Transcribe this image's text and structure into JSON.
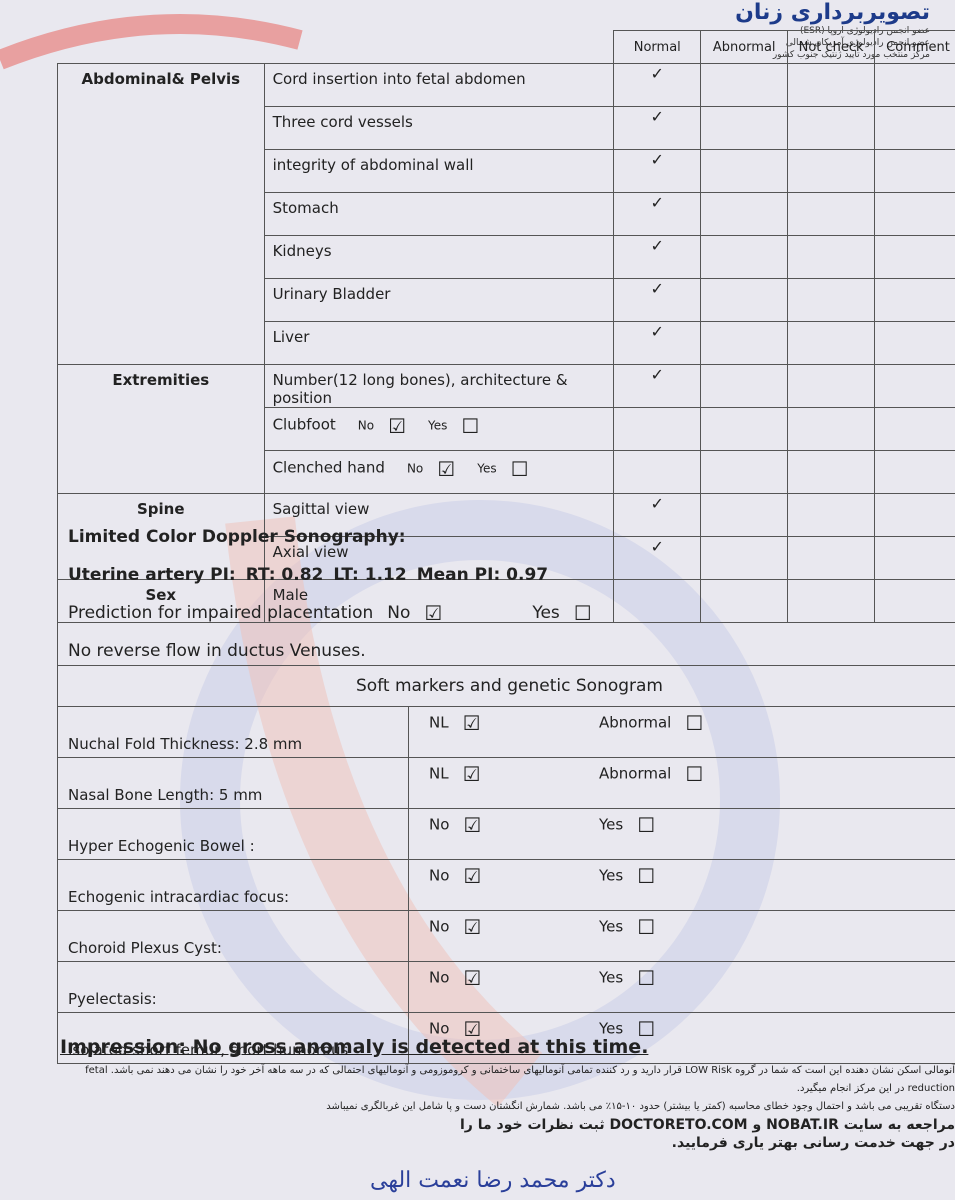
{
  "header": {
    "brand": "تصویربرداری زنان",
    "notes": [
      "عضو انجمن رادیولوژی اروپا (ESR)",
      "عضو انجمن رادیولوژی آمریکای شمالی",
      "مرکز منتخب مورد تایید ژنتیک جنوب کشور"
    ]
  },
  "anatomy": {
    "headers": [
      "Normal",
      "Abnormal",
      "Not check",
      "Comment"
    ],
    "sections": [
      {
        "region": "Abdominal& Pelvis",
        "items": [
          {
            "label": "Cord insertion into fetal abdomen",
            "normal": "✓"
          },
          {
            "label": "Three cord vessels",
            "normal": "✓"
          },
          {
            "label": "integrity of abdominal wall",
            "normal": "✓"
          },
          {
            "label": "Stomach",
            "normal": "✓"
          },
          {
            "label": "Kidneys",
            "normal": "✓"
          },
          {
            "label": "Urinary Bladder",
            "normal": "✓"
          },
          {
            "label": "Liver",
            "normal": "✓"
          }
        ]
      },
      {
        "region": "Extremities",
        "items": [
          {
            "label": "Number(12 long bones), architecture & position",
            "normal": "✓"
          },
          {
            "label": "Clubfoot",
            "options": [
              {
                "label": "No",
                "box": "☑"
              },
              {
                "label": "Yes",
                "box": "☐"
              }
            ]
          },
          {
            "label": "Clenched hand",
            "options": [
              {
                "label": "No",
                "box": "☑"
              },
              {
                "label": "Yes",
                "box": "☐"
              }
            ]
          }
        ]
      },
      {
        "region": "Spine",
        "items": [
          {
            "label": "Sagittal view",
            "normal": "✓"
          },
          {
            "label": "Axial view",
            "normal": "✓"
          }
        ]
      },
      {
        "region": "Sex",
        "items": [
          {
            "label": "Male"
          }
        ]
      }
    ]
  },
  "doppler": {
    "title": "Limited Color Doppler Sonography:",
    "uterine": {
      "label": "Uterine artery PI:",
      "rt": "RT: 0.82",
      "lt": "LT: 1.12",
      "mean": "Mean PI: 0.97"
    },
    "prediction": {
      "label": "Prediction for impaired placentation",
      "options": [
        {
          "label": "No",
          "box": "☑"
        },
        {
          "label": "Yes",
          "box": "☐"
        }
      ]
    },
    "ductus": "No reverse flow in ductus Venuses."
  },
  "soft_markers": {
    "title": "Soft markers and genetic Sonogram",
    "rows": [
      {
        "label": "Nuchal Fold Thickness:  2.8  mm",
        "options": [
          {
            "label": "NL",
            "box": "☑"
          },
          {
            "label": "Abnormal",
            "box": "☐"
          }
        ]
      },
      {
        "label": "Nasal Bone Length:  5  mm",
        "options": [
          {
            "label": "NL",
            "box": "☑"
          },
          {
            "label": "Abnormal",
            "box": "☐"
          }
        ]
      },
      {
        "label": "Hyper Echogenic Bowel :",
        "options": [
          {
            "label": "No",
            "box": "☑"
          },
          {
            "label": "Yes",
            "box": "☐"
          }
        ]
      },
      {
        "label": "Echogenic intracardiac focus:",
        "options": [
          {
            "label": "No",
            "box": "☑"
          },
          {
            "label": "Yes",
            "box": "☐"
          }
        ]
      },
      {
        "label": "Choroid Plexus Cyst:",
        "options": [
          {
            "label": "No",
            "box": "☑"
          },
          {
            "label": "Yes",
            "box": "☐"
          }
        ]
      },
      {
        "label": "Pyelectasis:",
        "options": [
          {
            "label": "No",
            "box": "☑"
          },
          {
            "label": "Yes",
            "box": "☐"
          }
        ]
      },
      {
        "label": "Isolated short femur, short humorous",
        "options": [
          {
            "label": "No",
            "box": "☑"
          },
          {
            "label": "Yes",
            "box": "☐"
          }
        ]
      }
    ]
  },
  "impression": "Impression: No gross anomaly is detected at this time.",
  "footer": [
    "آنومالی اسکن نشان دهنده این است که شما در گروه LOW Risk قرار دارید و رد کننده تمامی آنومالیهای ساختمانی و کروموزومی و آنومالیهای احتمالی که در سه ماهه آخر خود را نشان می دهند نمی باشد. fetal reduction در این مرکز انجام میگیرد.",
    "دستگاه تقریبی می باشد و احتمال وجود خطای محاسبه (کمتر یا بیشتر) حدود ۱۰-۱۵٪ می باشد. شمارش انگشتان دست و پا شامل این غربالگری نمیباشد",
    "مراجعه به سایت NOBAT.IR و DOCTORETO.COM ثبت نظرات خود ما را",
    "در جهت خدمت رسانی بهتر یاری فرمایید."
  ],
  "signature": "دکتر محمد رضا نعمت الهی"
}
